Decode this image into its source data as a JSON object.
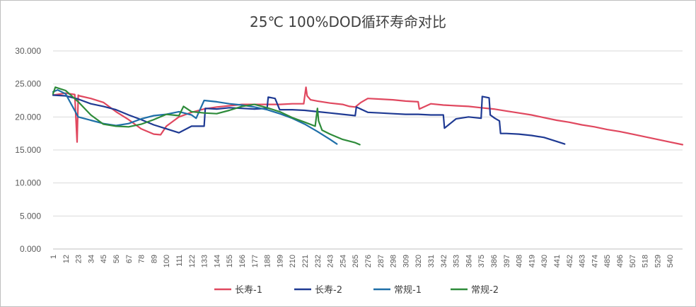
{
  "chart_data": {
    "type": "line",
    "title": "25℃ 100%DOD循环寿命对比",
    "xlabel": "",
    "ylabel": "",
    "ylim": [
      0,
      30
    ],
    "yticks": [
      0,
      5,
      10,
      15,
      20,
      25,
      30
    ],
    "ytick_labels": [
      "0.000",
      "5.000",
      "10.000",
      "15.000",
      "20.000",
      "25.000",
      "30.000"
    ],
    "xlim": [
      1,
      551
    ],
    "xticks": [
      1,
      12,
      23,
      34,
      45,
      56,
      67,
      78,
      89,
      100,
      111,
      122,
      133,
      144,
      155,
      166,
      177,
      188,
      199,
      210,
      221,
      232,
      243,
      254,
      265,
      276,
      287,
      298,
      309,
      320,
      331,
      342,
      353,
      364,
      375,
      386,
      397,
      408,
      419,
      430,
      441,
      452,
      463,
      474,
      485,
      496,
      507,
      518,
      529,
      540
    ],
    "grid": "horizontal",
    "legend_position": "bottom",
    "series": [
      {
        "name": "长寿-1",
        "color": "#e0485f",
        "x": [
          1,
          12,
          20,
          22,
          23,
          24,
          34,
          45,
          56,
          67,
          78,
          89,
          95,
          100,
          111,
          122,
          133,
          144,
          155,
          166,
          177,
          188,
          199,
          210,
          220,
          222,
          223,
          226,
          232,
          243,
          254,
          260,
          265,
          270,
          276,
          287,
          298,
          309,
          320,
          321,
          331,
          342,
          353,
          364,
          375,
          386,
          397,
          408,
          419,
          430,
          441,
          452,
          463,
          474,
          485,
          496,
          507,
          518,
          529,
          540,
          551
        ],
        "y": [
          23.3,
          23.6,
          23.4,
          16.2,
          23.3,
          23.2,
          22.8,
          22.2,
          20.8,
          19.6,
          18.2,
          17.4,
          17.3,
          18.6,
          20.0,
          20.7,
          21.2,
          21.5,
          21.7,
          21.9,
          21.9,
          21.9,
          21.9,
          22.0,
          22.0,
          24.5,
          23.2,
          22.6,
          22.4,
          22.1,
          21.9,
          21.6,
          21.5,
          22.2,
          22.8,
          22.7,
          22.6,
          22.4,
          22.3,
          21.2,
          22.0,
          21.8,
          21.7,
          21.6,
          21.4,
          21.2,
          20.9,
          20.6,
          20.3,
          19.9,
          19.5,
          19.2,
          18.8,
          18.5,
          18.1,
          17.8,
          17.4,
          17.0,
          16.6,
          16.2,
          15.8
        ]
      },
      {
        "name": "长寿-2",
        "color": "#1f3a93",
        "x": [
          1,
          12,
          23,
          34,
          45,
          56,
          67,
          78,
          89,
          100,
          111,
          122,
          133,
          134,
          144,
          155,
          166,
          177,
          188,
          189,
          195,
          199,
          210,
          221,
          232,
          243,
          254,
          265,
          266,
          276,
          287,
          298,
          309,
          320,
          331,
          342,
          343,
          353,
          364,
          375,
          376,
          382,
          383,
          387,
          391,
          392,
          397,
          408,
          419,
          430,
          441,
          448
        ],
        "y": [
          23.3,
          23.2,
          22.7,
          22.0,
          21.6,
          21.1,
          20.3,
          19.6,
          18.8,
          18.2,
          17.6,
          18.6,
          18.6,
          21.3,
          21.2,
          21.4,
          21.3,
          21.2,
          21.3,
          23.0,
          22.8,
          21.1,
          21.1,
          21.0,
          20.8,
          20.6,
          20.4,
          20.2,
          21.5,
          20.7,
          20.6,
          20.5,
          20.4,
          20.4,
          20.3,
          20.3,
          18.3,
          19.7,
          20.0,
          19.8,
          23.1,
          22.9,
          20.3,
          19.8,
          19.4,
          17.5,
          17.5,
          17.4,
          17.2,
          16.9,
          16.3,
          15.9
        ]
      },
      {
        "name": "常规-1",
        "color": "#1f6fa8",
        "x": [
          1,
          5,
          12,
          23,
          34,
          45,
          56,
          67,
          78,
          89,
          100,
          111,
          122,
          126,
          133,
          144,
          155,
          166,
          177,
          188,
          199,
          210,
          221,
          232,
          243,
          249
        ],
        "y": [
          23.8,
          24.1,
          23.5,
          20.0,
          19.5,
          19.0,
          18.7,
          19.0,
          19.7,
          20.2,
          20.4,
          20.8,
          20.3,
          19.8,
          22.5,
          22.3,
          22.0,
          21.8,
          21.5,
          21.1,
          20.5,
          19.8,
          18.9,
          17.8,
          16.6,
          15.9
        ]
      },
      {
        "name": "常规-2",
        "color": "#2e8b3a",
        "x": [
          1,
          3,
          12,
          23,
          34,
          45,
          56,
          67,
          78,
          89,
          100,
          111,
          115,
          122,
          133,
          144,
          155,
          166,
          177,
          188,
          199,
          210,
          221,
          230,
          232,
          233,
          236,
          243,
          254,
          265,
          269
        ],
        "y": [
          23.5,
          24.5,
          24.0,
          22.3,
          20.3,
          18.9,
          18.6,
          18.5,
          18.9,
          19.6,
          20.4,
          20.2,
          21.6,
          20.8,
          20.6,
          20.5,
          21.0,
          21.6,
          21.9,
          21.4,
          20.8,
          19.9,
          19.2,
          18.6,
          21.3,
          19.4,
          18.0,
          17.4,
          16.6,
          16.1,
          15.8
        ]
      }
    ]
  }
}
